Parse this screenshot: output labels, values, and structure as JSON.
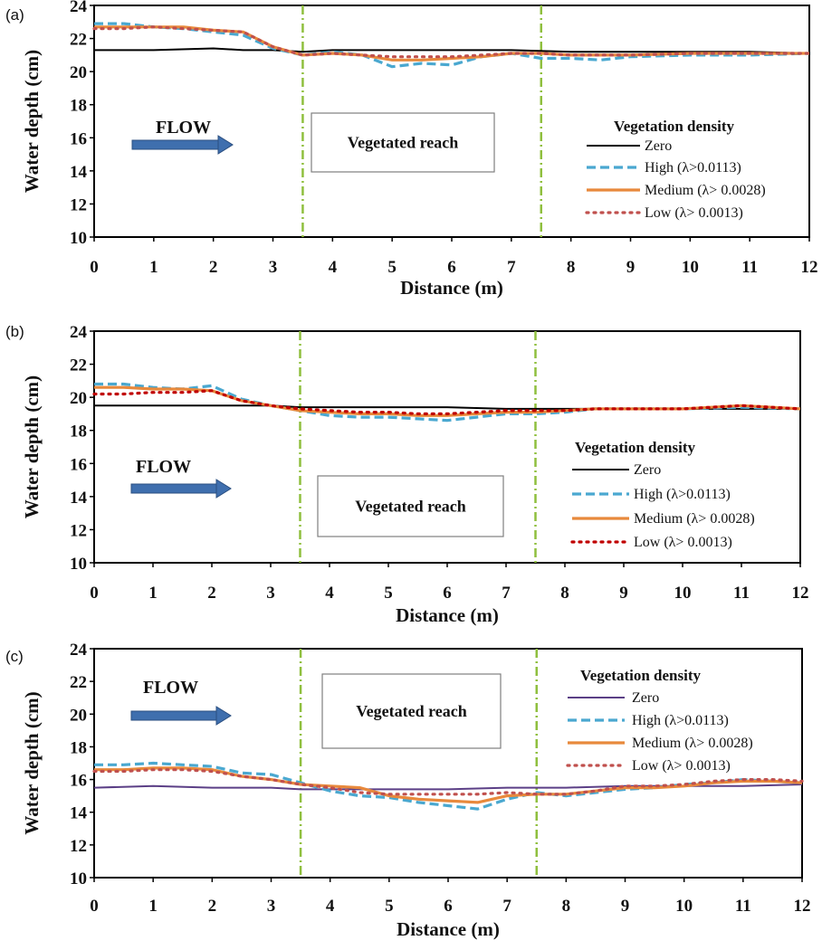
{
  "chart_data": [
    {
      "type": "line",
      "panel": "(a)",
      "xlabel": "Distance (m)",
      "ylabel": "Water depth (cm)",
      "xlim": [
        0,
        12
      ],
      "ylim": [
        10,
        24
      ],
      "xticks": [
        "0",
        "1",
        "2",
        "3",
        "4",
        "5",
        "6",
        "7",
        "8",
        "9",
        "10",
        "11",
        "12"
      ],
      "yticks": [
        "10",
        "12",
        "14",
        "16",
        "18",
        "20",
        "22",
        "24"
      ],
      "grid": false,
      "legend_title": "Vegetation density",
      "legend_position": "right",
      "flow_label": "FLOW",
      "reach_label": "Vegetated reach",
      "reach_bounds": [
        3.5,
        7.5
      ],
      "series": [
        {
          "name": "Zero",
          "style": "solid",
          "color": "#000000",
          "x": [
            0,
            1,
            2,
            2.5,
            3,
            3.5,
            4,
            5,
            6,
            7,
            8,
            9,
            10,
            11,
            12
          ],
          "y": [
            21.3,
            21.3,
            21.4,
            21.3,
            21.3,
            21.2,
            21.3,
            21.3,
            21.3,
            21.3,
            21.2,
            21.2,
            21.2,
            21.2,
            21.1
          ]
        },
        {
          "name": "High (λ>0.0113)",
          "style": "dashed",
          "color": "#4aa8d0",
          "x": [
            0,
            0.5,
            1,
            1.5,
            2,
            2.5,
            3,
            3.5,
            4,
            4.5,
            5,
            5.5,
            6,
            6.5,
            7,
            7.5,
            8,
            8.5,
            9,
            10,
            11,
            12
          ],
          "y": [
            22.9,
            22.9,
            22.7,
            22.6,
            22.4,
            22.2,
            21.4,
            21.0,
            21.2,
            21.0,
            20.3,
            20.5,
            20.4,
            20.9,
            21.1,
            20.8,
            20.8,
            20.7,
            20.9,
            21.0,
            21.0,
            21.1
          ]
        },
        {
          "name": "Medium (λ> 0.0028)",
          "style": "solid",
          "color": "#e8893c",
          "x": [
            0,
            0.5,
            1,
            1.5,
            2,
            2.5,
            3,
            3.5,
            4,
            4.5,
            5,
            5.5,
            6,
            6.5,
            7,
            7.5,
            8,
            8.5,
            9,
            10,
            11,
            12
          ],
          "y": [
            22.7,
            22.7,
            22.7,
            22.7,
            22.5,
            22.4,
            21.5,
            21.0,
            21.1,
            21.0,
            20.7,
            20.7,
            20.8,
            20.9,
            21.1,
            21.1,
            21.0,
            21.0,
            21.0,
            21.1,
            21.1,
            21.1
          ]
        },
        {
          "name": "Low  (λ> 0.0013)",
          "style": "dotted",
          "color": "#c0504d",
          "x": [
            0,
            0.5,
            1,
            1.5,
            2,
            2.5,
            3,
            3.5,
            4,
            4.5,
            5,
            5.5,
            6,
            6.5,
            7,
            7.5,
            8,
            8.5,
            9,
            10,
            11,
            12
          ],
          "y": [
            22.6,
            22.6,
            22.7,
            22.6,
            22.5,
            22.4,
            21.5,
            21.0,
            21.1,
            21.0,
            20.9,
            20.9,
            20.9,
            21.0,
            21.1,
            21.1,
            21.0,
            21.0,
            21.0,
            21.1,
            21.1,
            21.1
          ]
        }
      ]
    },
    {
      "type": "line",
      "panel": "(b)",
      "xlabel": "Distance (m)",
      "ylabel": "Water depth (cm)",
      "xlim": [
        0,
        12
      ],
      "ylim": [
        10,
        24
      ],
      "xticks": [
        "0",
        "1",
        "2",
        "3",
        "4",
        "5",
        "6",
        "7",
        "8",
        "9",
        "10",
        "11",
        "12"
      ],
      "yticks": [
        "10",
        "12",
        "14",
        "16",
        "18",
        "20",
        "22",
        "24"
      ],
      "grid": false,
      "legend_title": "Vegetation density",
      "legend_position": "right",
      "flow_label": "FLOW",
      "reach_label": "Vegetated reach",
      "reach_bounds": [
        3.5,
        7.5
      ],
      "series": [
        {
          "name": "Zero",
          "style": "solid",
          "color": "#000000",
          "x": [
            0,
            1,
            2,
            3,
            3.5,
            4,
            5,
            6,
            7,
            8,
            9,
            10,
            11,
            12
          ],
          "y": [
            19.5,
            19.5,
            19.5,
            19.5,
            19.4,
            19.4,
            19.4,
            19.4,
            19.3,
            19.3,
            19.3,
            19.3,
            19.3,
            19.3
          ]
        },
        {
          "name": "High (λ>0.0113)",
          "style": "dashed",
          "color": "#4aa8d0",
          "x": [
            0,
            0.5,
            1,
            1.5,
            2,
            2.5,
            3,
            3.5,
            4,
            4.5,
            5,
            5.5,
            6,
            6.5,
            7,
            7.5,
            8,
            8.5,
            9,
            10,
            11,
            12
          ],
          "y": [
            20.8,
            20.8,
            20.6,
            20.5,
            20.7,
            19.9,
            19.5,
            19.2,
            18.9,
            18.8,
            18.8,
            18.7,
            18.6,
            18.8,
            19.0,
            19.0,
            19.1,
            19.3,
            19.3,
            19.3,
            19.4,
            19.3
          ]
        },
        {
          "name": "Medium (λ> 0.0028)",
          "style": "solid",
          "color": "#e8893c",
          "x": [
            0,
            0.5,
            1,
            1.5,
            2,
            2.5,
            3,
            3.5,
            4,
            4.5,
            5,
            5.5,
            6,
            6.5,
            7,
            7.5,
            8,
            8.5,
            9,
            10,
            11,
            12
          ],
          "y": [
            20.6,
            20.6,
            20.5,
            20.5,
            20.4,
            19.8,
            19.5,
            19.2,
            19.1,
            19.0,
            19.0,
            18.9,
            18.9,
            19.0,
            19.1,
            19.1,
            19.2,
            19.3,
            19.3,
            19.3,
            19.5,
            19.3
          ]
        },
        {
          "name": "Low  (λ> 0.0013)",
          "style": "dotted",
          "color": "#c00000",
          "x": [
            0,
            0.5,
            1,
            1.5,
            2,
            2.5,
            3,
            3.5,
            4,
            4.5,
            5,
            5.5,
            6,
            6.5,
            7,
            7.5,
            8,
            8.5,
            9,
            10,
            11,
            12
          ],
          "y": [
            20.2,
            20.2,
            20.3,
            20.3,
            20.4,
            19.8,
            19.5,
            19.3,
            19.2,
            19.1,
            19.1,
            19.0,
            19.0,
            19.1,
            19.2,
            19.2,
            19.2,
            19.3,
            19.3,
            19.3,
            19.5,
            19.3
          ]
        }
      ]
    },
    {
      "type": "line",
      "panel": "(c)",
      "xlabel": "Distance (m)",
      "ylabel": "Water depth (cm)",
      "xlim": [
        0,
        12
      ],
      "ylim": [
        10,
        24
      ],
      "xticks": [
        "0",
        "1",
        "2",
        "3",
        "4",
        "5",
        "6",
        "7",
        "8",
        "9",
        "10",
        "11",
        "12"
      ],
      "yticks": [
        "10",
        "12",
        "14",
        "16",
        "18",
        "20",
        "22",
        "24"
      ],
      "grid": false,
      "legend_title": "Vegetation density",
      "legend_position": "right",
      "flow_label": "FLOW",
      "reach_label": "Vegetated reach",
      "reach_bounds": [
        3.5,
        7.5
      ],
      "series": [
        {
          "name": "Zero",
          "style": "solid",
          "color": "#5b3f86",
          "x": [
            0,
            1,
            2,
            3,
            3.5,
            4,
            5,
            6,
            7,
            8,
            9,
            10,
            11,
            12
          ],
          "y": [
            15.5,
            15.6,
            15.5,
            15.5,
            15.4,
            15.4,
            15.4,
            15.4,
            15.5,
            15.5,
            15.6,
            15.6,
            15.6,
            15.7
          ]
        },
        {
          "name": "High (λ>0.0113)",
          "style": "dashed",
          "color": "#4aa8d0",
          "x": [
            0,
            0.5,
            1,
            1.5,
            2,
            2.5,
            3,
            3.5,
            4,
            4.5,
            5,
            5.5,
            6,
            6.5,
            7,
            7.5,
            8,
            8.5,
            9,
            9.5,
            10,
            10.5,
            11,
            11.5,
            12
          ],
          "y": [
            16.9,
            16.9,
            17.0,
            16.9,
            16.8,
            16.4,
            16.3,
            15.8,
            15.3,
            15.0,
            14.9,
            14.6,
            14.4,
            14.2,
            14.8,
            15.2,
            15.0,
            15.2,
            15.4,
            15.5,
            15.7,
            15.8,
            16.0,
            15.9,
            15.8
          ]
        },
        {
          "name": "Medium (λ> 0.0028)",
          "style": "solid",
          "color": "#e8893c",
          "x": [
            0,
            0.5,
            1,
            1.5,
            2,
            2.5,
            3,
            3.5,
            4,
            4.5,
            5,
            5.5,
            6,
            6.5,
            7,
            7.5,
            8,
            8.5,
            9,
            9.5,
            10,
            10.5,
            11,
            11.5,
            12
          ],
          "y": [
            16.6,
            16.6,
            16.7,
            16.7,
            16.6,
            16.2,
            16.0,
            15.7,
            15.6,
            15.5,
            15.0,
            14.8,
            14.7,
            14.6,
            15.0,
            15.1,
            15.1,
            15.3,
            15.5,
            15.5,
            15.6,
            15.8,
            15.9,
            15.9,
            15.8
          ]
        },
        {
          "name": "Low  (λ> 0.0013)",
          "style": "dotted",
          "color": "#c0504d",
          "x": [
            0,
            0.5,
            1,
            1.5,
            2,
            2.5,
            3,
            3.5,
            4,
            4.5,
            5,
            5.5,
            6,
            6.5,
            7,
            7.5,
            8,
            8.5,
            9,
            9.5,
            10,
            10.5,
            11,
            11.5,
            12
          ],
          "y": [
            16.5,
            16.5,
            16.6,
            16.6,
            16.5,
            16.2,
            16.0,
            15.7,
            15.5,
            15.2,
            15.1,
            15.1,
            15.1,
            15.1,
            15.2,
            15.1,
            15.1,
            15.3,
            15.6,
            15.6,
            15.7,
            15.9,
            16.0,
            16.0,
            15.9
          ]
        }
      ]
    }
  ]
}
